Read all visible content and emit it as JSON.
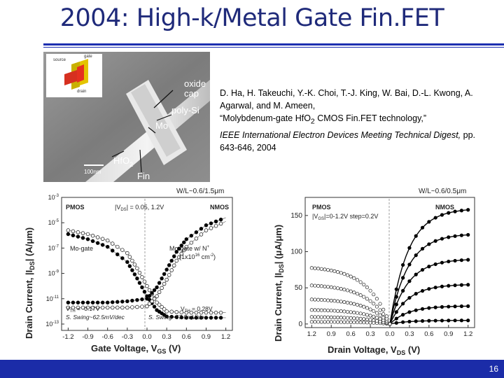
{
  "slide": {
    "title": "2004: High-k/Metal Gate Fin.FET",
    "page_number": "16",
    "colors": {
      "title": "#1f2a7a",
      "accent_bar": "#1b2ca8"
    }
  },
  "reference": {
    "authors": "D. Ha, H. Takeuchi, Y.-K. Choi, T.-J. King, W. Bai, D.-L. Kwong, A. Agarwal, and M. Ameen,",
    "paper_title_pre": "“Molybdenum-gate HfO",
    "paper_title_sub": "2",
    "paper_title_post": " CMOS Fin.FET technology,”",
    "venue": "IEEE International Electron Devices Meeting Technical Digest,",
    "pages": " pp. 643-646, 2004"
  },
  "sem_image": {
    "labels": {
      "oxide_cap_line1": "oxide",
      "oxide_cap_line2": "cap",
      "poly_si": "poly-Si",
      "mo": "Mo",
      "hfo2_pre": "HfO",
      "hfo2_sub": "2",
      "fin": "Fin",
      "scale": "100nm"
    },
    "inset": {
      "source": "source",
      "gate": "gate",
      "drain": "drain"
    }
  },
  "left_plot": {
    "corner_label": "W/L~0.6/1.5μm",
    "ylabel": "Drain Current, |I",
    "ylabel_sub": "DS",
    "ylabel_tail": "| (A/μm)",
    "xlabel": "Gate Voltage, V",
    "xlabel_sub": "GS",
    "xlabel_tail": " (V)",
    "pmos": "PMOS",
    "nmos": "NMOS",
    "vds": "|V",
    "vds_sub": "DS",
    "vds_tail": "| = 0.05, 1.2V",
    "mo_gate": "Mo-gate",
    "mo_gate_n": "Mo-gate w/ N",
    "mo_gate_n_sup": "+",
    "dose": "(1x10",
    "dose_sup": "16",
    "dose_tail": " cm",
    "dose_sup2": "-2",
    "dose_close": ")",
    "vth_left": "V",
    "vth_left_sub": "TH",
    "vth_left_val": " = -0.17V",
    "swing_left": "S. Swing~62.5mV/dec",
    "vth_right": "V",
    "vth_right_sub": "TH",
    "vth_right_val": " = 0.28V",
    "swing_right": "S. Swing~67.5mV/dec"
  },
  "right_plot": {
    "corner_label": "W/L~0.6/0.5μm",
    "ylabel": "Drain Current, |I",
    "ylabel_sub": "DS",
    "ylabel_tail": "| (μA/μm)",
    "xlabel": "Drain Voltage, V",
    "xlabel_sub": "DS",
    "xlabel_tail": " (V)",
    "pmos": "PMOS",
    "nmos": "NMOS",
    "vgs": "|V",
    "vgs_sub": "GS",
    "vgs_tail": "|=0-1.2V step=0.2V"
  },
  "chart_data": [
    {
      "type": "scatter",
      "title": "",
      "xlabel": "Gate Voltage, VGS (V)",
      "ylabel": "Drain Current, |IDS| (A/μm)",
      "x_ticks": [
        "-1.2",
        "-0.9",
        "-0.6",
        "-0.3",
        "0.0",
        "0.3",
        "0.6",
        "0.9",
        "1.2"
      ],
      "y_ticks": [
        "10^-3",
        "10^-5",
        "10^-7",
        "10^-9",
        "10^-11",
        "10^-13"
      ],
      "xlim": [
        -1.3,
        1.3
      ],
      "ylim": [
        -13.5,
        -3
      ],
      "y_scale": "log",
      "series": [
        {
          "x": [
            -1.2,
            -0.9,
            -0.6,
            -0.3,
            -0.15,
            0.0,
            0.15,
            0.3,
            0.6,
            0.9,
            1.2
          ],
          "y": [
            -5.6,
            -5.9,
            -6.4,
            -7.4,
            -8.6,
            -10.0,
            -11.3,
            -12.0,
            -12.1,
            -12.1,
            -12.1
          ]
        },
        {
          "x": [
            -1.2,
            -0.9,
            -0.6,
            -0.3,
            -0.15,
            0.0,
            0.15,
            0.3,
            0.6,
            0.9,
            1.2
          ],
          "y": [
            -5.9,
            -6.3,
            -6.9,
            -8.1,
            -9.4,
            -10.8,
            -11.9,
            -12.4,
            -12.5,
            -12.5,
            -12.5
          ]
        },
        {
          "x": [
            -1.2,
            -0.9,
            -0.6,
            -0.3,
            0.0,
            0.15,
            0.3,
            0.45,
            0.6,
            0.9,
            1.2
          ],
          "y": [
            -11.7,
            -11.7,
            -11.7,
            -11.7,
            -11.6,
            -10.8,
            -9.5,
            -8.0,
            -6.9,
            -5.6,
            -4.9
          ]
        },
        {
          "x": [
            -1.2,
            -0.9,
            -0.6,
            -0.3,
            0.0,
            0.15,
            0.3,
            0.45,
            0.6,
            0.9,
            1.2
          ],
          "y": [
            -11.3,
            -11.3,
            -11.3,
            -11.2,
            -11.0,
            -10.1,
            -8.7,
            -7.3,
            -6.3,
            -5.2,
            -4.6
          ]
        }
      ]
    },
    {
      "type": "line",
      "title": "",
      "xlabel": "Drain Voltage, VDS (V)",
      "ylabel": "Drain Current, |IDS| (μA/μm)",
      "x_ticks": [
        "1.2",
        "0.9",
        "0.6",
        "0.3",
        "0.0",
        "0.3",
        "0.6",
        "0.9",
        "1.2"
      ],
      "y_ticks": [
        "0",
        "50",
        "100",
        "150"
      ],
      "xlim": [
        -1.3,
        1.3
      ],
      "ylim": [
        -5,
        175
      ],
      "series": [
        {
          "x_side": "NMOS",
          "saturation_values": [
            5,
            25,
            55,
            90,
            125,
            160
          ]
        },
        {
          "x_side": "PMOS",
          "saturation_values": [
            3,
            10,
            20,
            35,
            55,
            80
          ]
        }
      ]
    }
  ]
}
